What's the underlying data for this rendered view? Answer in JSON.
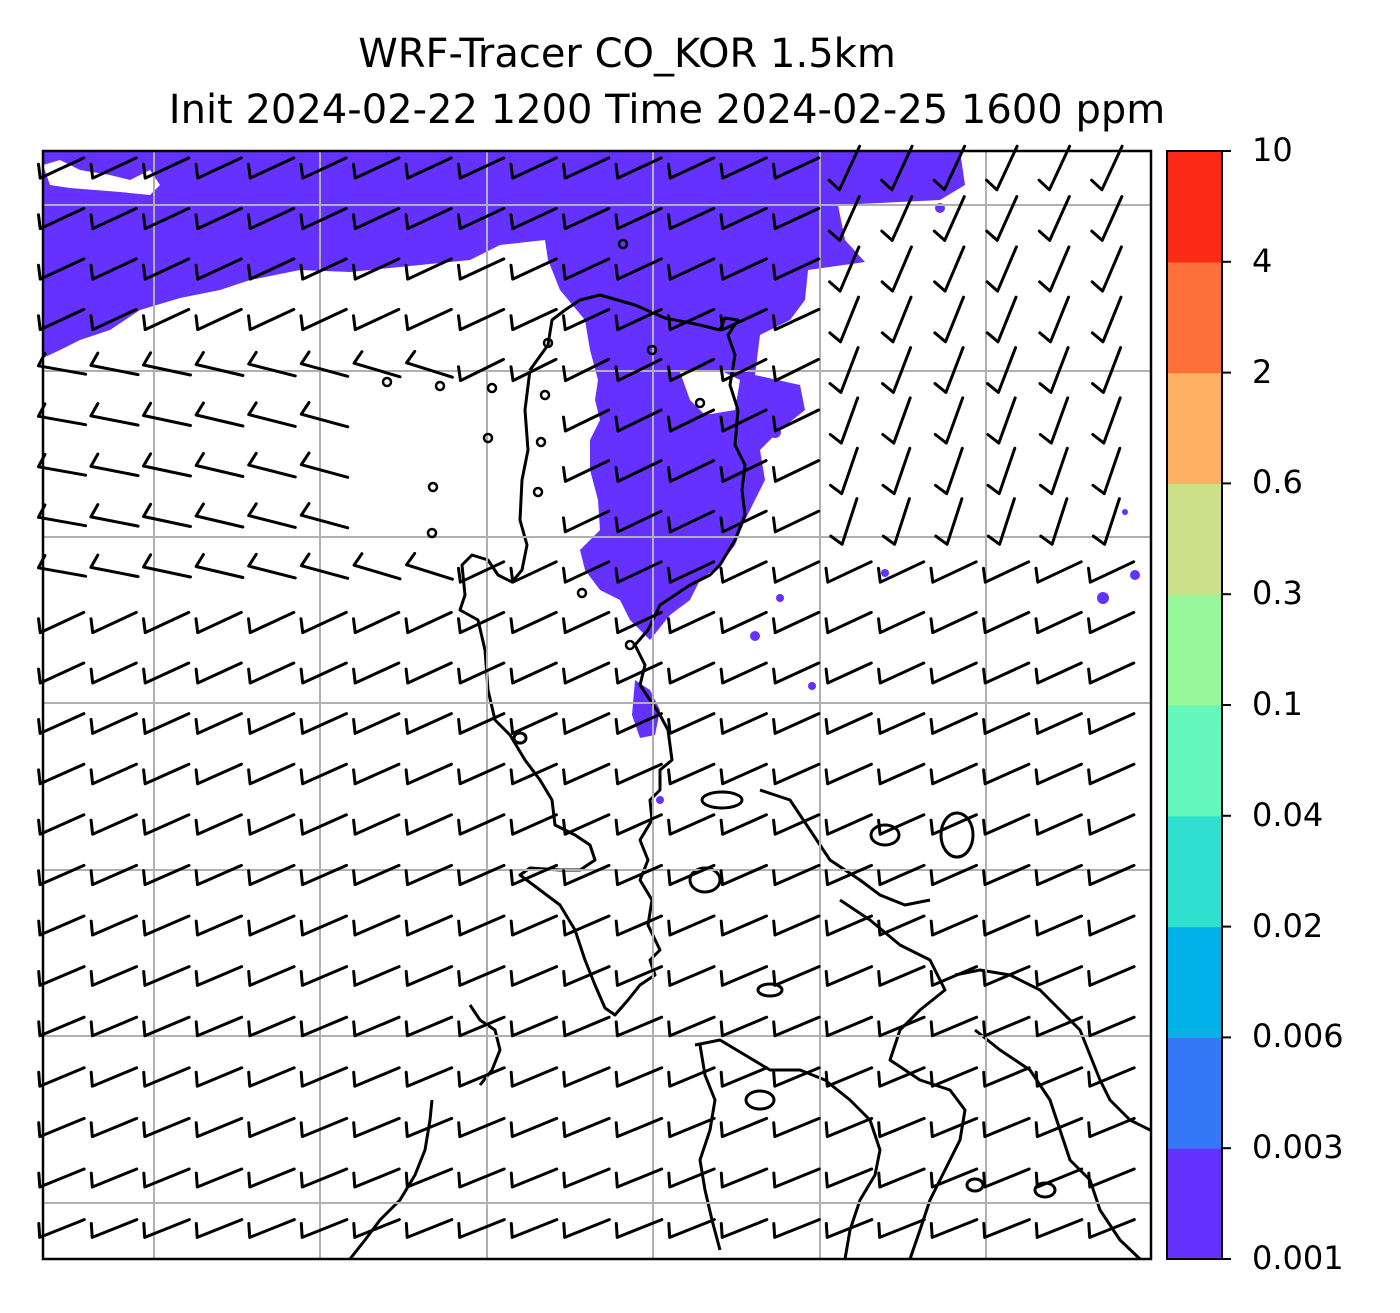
{
  "title": {
    "line1": "WRF-Tracer CO_KOR 1.5km",
    "line2": "Init 2024-02-22 1200 Time 2024-02-25 1600 ppm"
  },
  "colorbar": {
    "levels": [
      "0.001",
      "0.003",
      "0.006",
      "0.02",
      "0.04",
      "0.1",
      "0.3",
      "0.6",
      "2",
      "4",
      "10"
    ],
    "colors": [
      "#6531ff",
      "#3477f7",
      "#02b2e8",
      "#2fdfd0",
      "#64f8bd",
      "#97f79b",
      "#cbe088",
      "#feb063",
      "#fe6f3a",
      "#fb2916"
    ]
  },
  "map": {
    "tracer_fill_color": "#6531ff",
    "gridline_color": "#b0b0b0",
    "barb_color": "#000000",
    "coastline_color": "#000000"
  }
}
